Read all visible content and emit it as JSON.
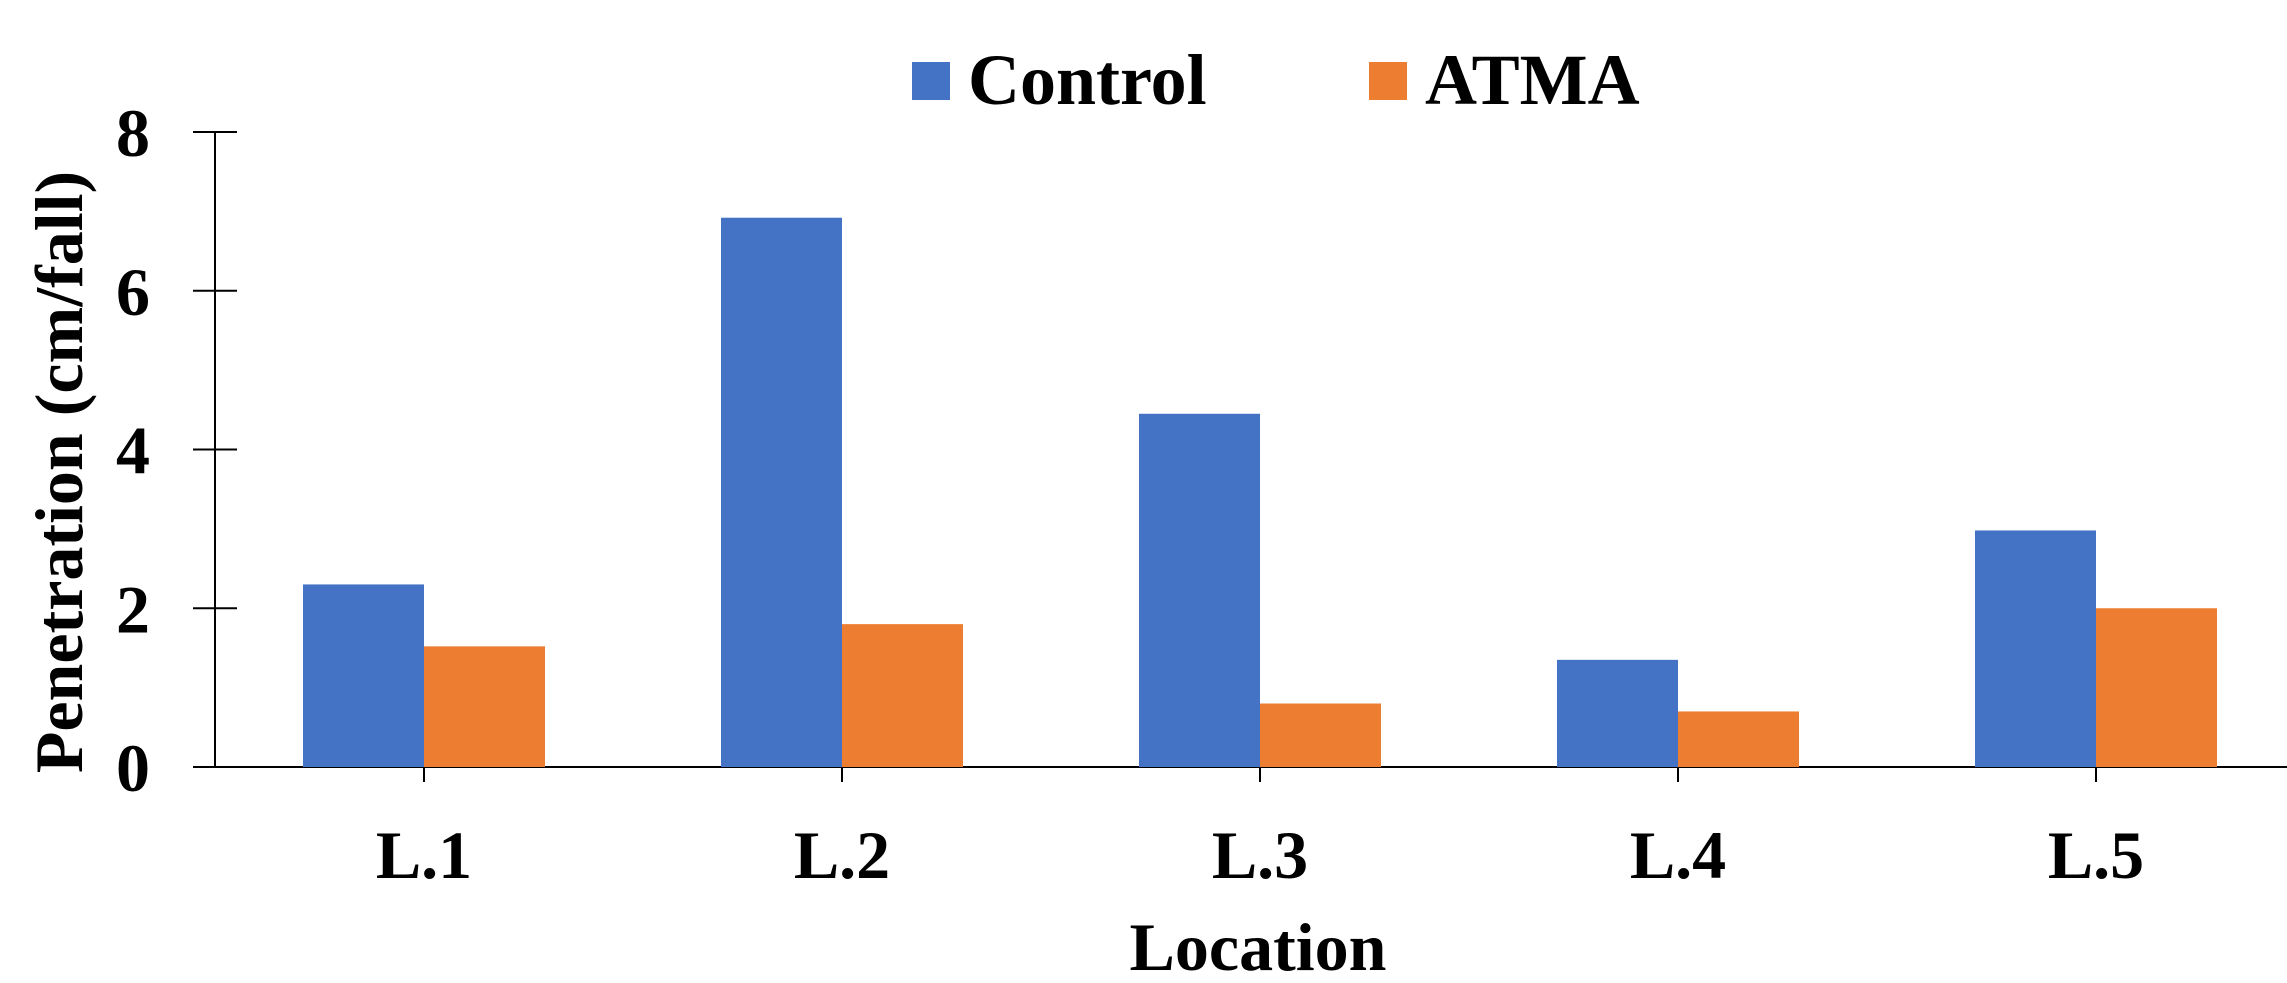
{
  "chart_data": {
    "type": "bar",
    "title": "",
    "xlabel": "Location",
    "ylabel": "Penetration (cm/fall)",
    "categories": [
      "L.1",
      "L.2",
      "L.3",
      "L.4",
      "L.5"
    ],
    "series": [
      {
        "name": "Control",
        "color": "#4472C4",
        "values": [
          2.3,
          6.92,
          4.45,
          1.35,
          2.98
        ]
      },
      {
        "name": "ATMA",
        "color": "#ED7D31",
        "values": [
          1.52,
          1.8,
          0.8,
          0.7,
          2.0
        ]
      }
    ],
    "ylim": [
      0,
      8
    ],
    "yticks": [
      0,
      2,
      4,
      6,
      8
    ],
    "grid": false,
    "legend_position": "top-center"
  }
}
